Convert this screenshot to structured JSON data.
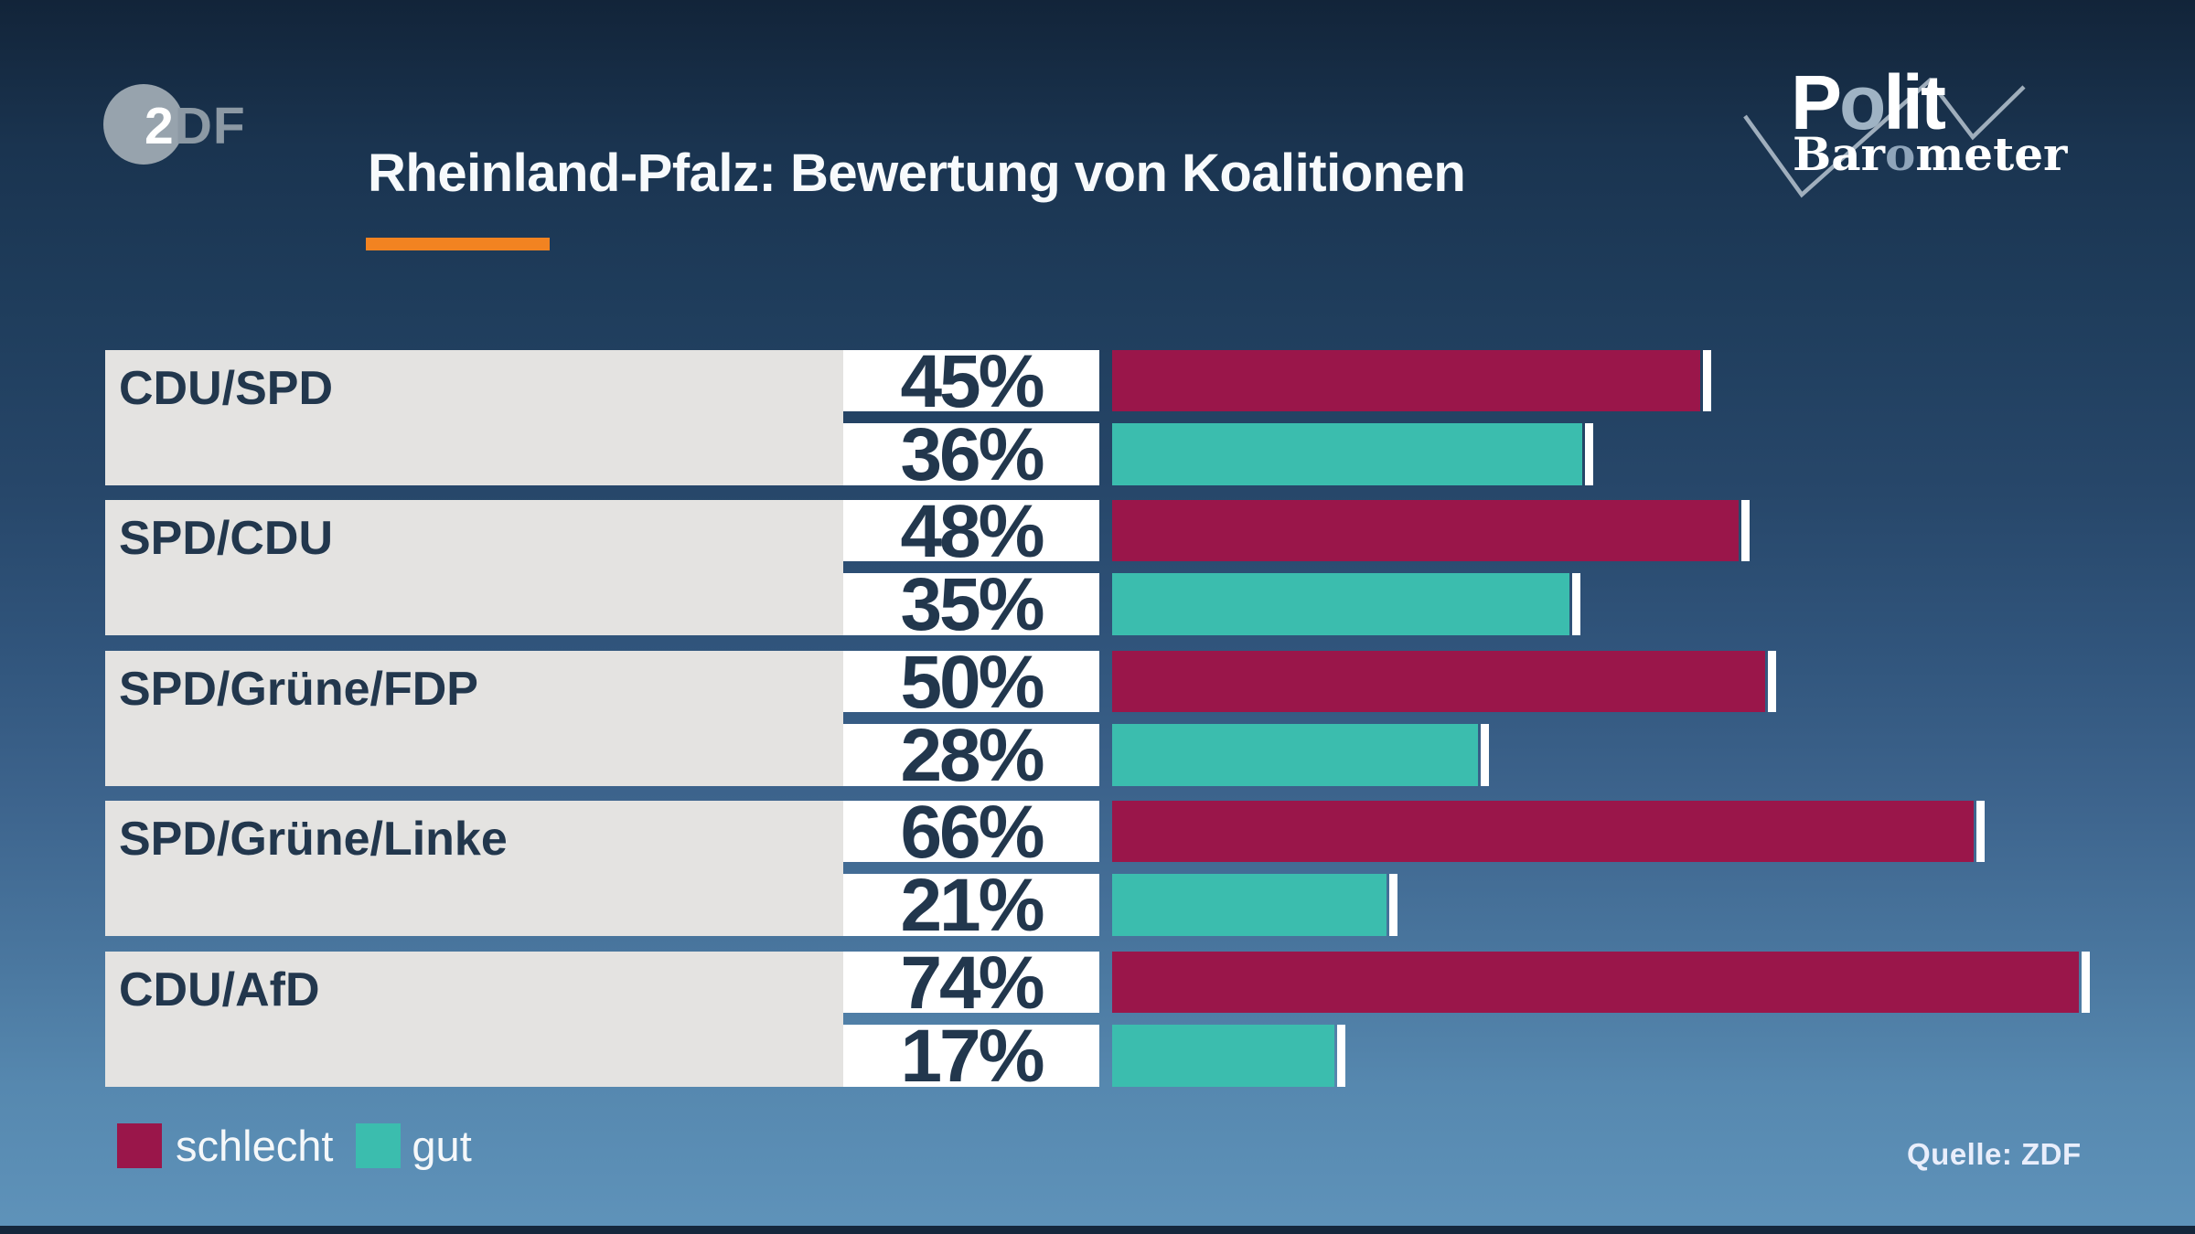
{
  "brand": {
    "zdf": {
      "two": "2",
      "df": "DF"
    },
    "politbarometer": {
      "p1": "P",
      "o1": "o",
      "p2": "lit",
      "b1": "Bar",
      "o2": "o",
      "b2": "meter"
    }
  },
  "chart_data": {
    "type": "bar",
    "orientation": "horizontal",
    "title": "Rheinland-Pfalz: Bewertung von Koalitionen",
    "categories": [
      "CDU/SPD",
      "SPD/CDU",
      "SPD/Grüne/FDP",
      "SPD/Grüne/Linke",
      "CDU/AfD"
    ],
    "series": [
      {
        "name": "schlecht",
        "color": "#9a164a",
        "values": [
          45,
          48,
          50,
          66,
          74
        ],
        "labels": [
          "45%",
          "48%",
          "50%",
          "66%",
          "74%"
        ]
      },
      {
        "name": "gut",
        "color": "#3bbdae",
        "values": [
          36,
          35,
          28,
          21,
          17
        ],
        "labels": [
          "36%",
          "35%",
          "28%",
          "21%",
          "17%"
        ]
      }
    ],
    "legend_position": "bottom-left",
    "grid": false
  },
  "legend": {
    "items": [
      {
        "label": "schlecht",
        "color": "#9a164a"
      },
      {
        "label": "gut",
        "color": "#3bbdae"
      }
    ]
  },
  "footer": {
    "source": "Quelle: ZDF"
  },
  "accent": {
    "title_underline": "#f28321"
  }
}
